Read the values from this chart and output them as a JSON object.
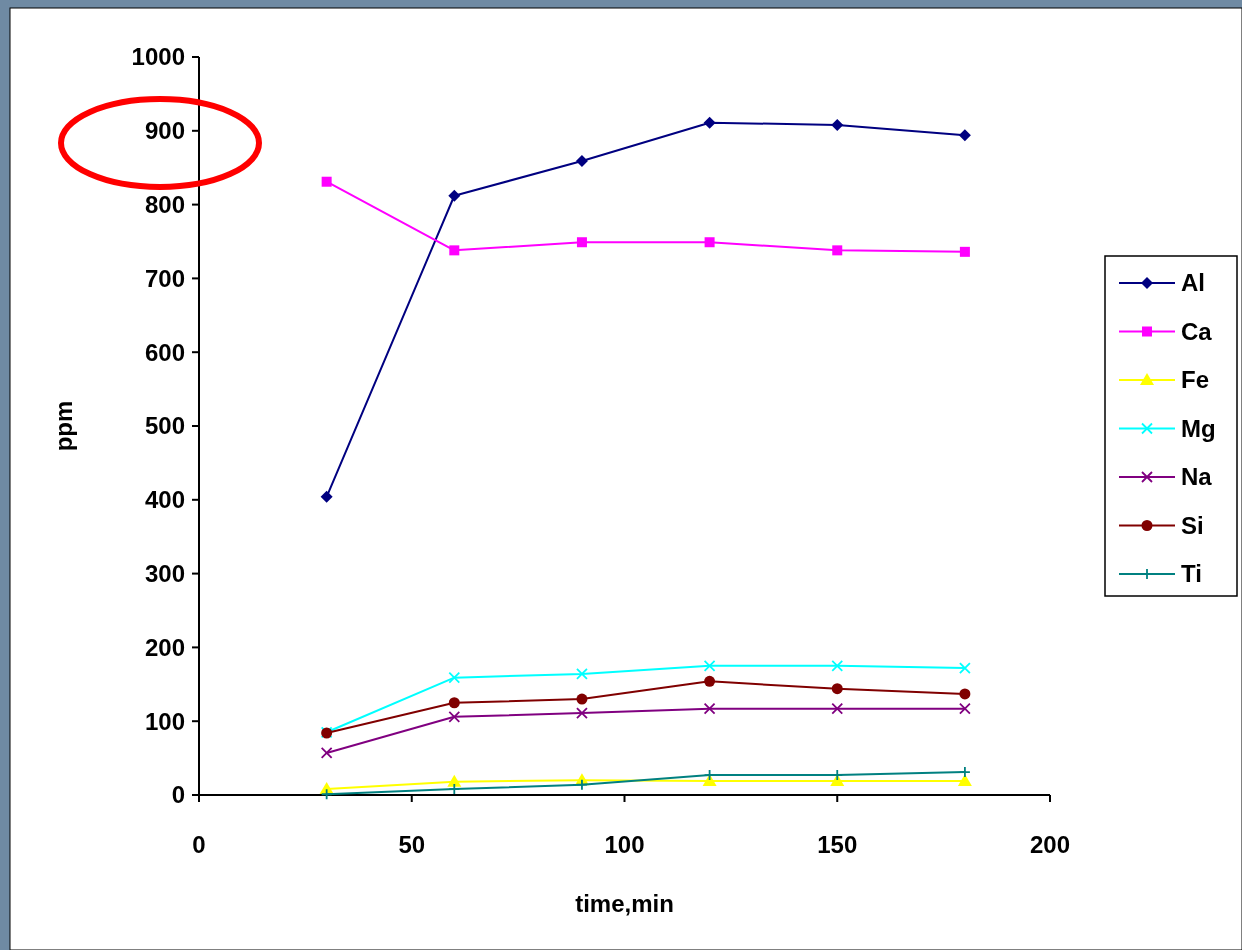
{
  "chart_data": {
    "type": "line",
    "xlabel": "time,min",
    "ylabel": "ppm",
    "x": [
      30,
      60,
      90,
      120,
      150,
      180
    ],
    "xlim": [
      0,
      200
    ],
    "xticks": [
      0,
      50,
      100,
      150,
      200
    ],
    "ylim": [
      0,
      1000
    ],
    "yticks": [
      0,
      100,
      200,
      300,
      400,
      500,
      600,
      700,
      800,
      900,
      1000
    ],
    "grid": false,
    "legend": "right",
    "line_style": "solid",
    "series": [
      {
        "name": "Al",
        "color": "#000080",
        "marker": "diamond",
        "values": [
          404,
          812,
          859,
          911,
          908,
          894
        ]
      },
      {
        "name": "Ca",
        "color": "#ff00ff",
        "marker": "square",
        "values": [
          831,
          738,
          749,
          749,
          738,
          736
        ]
      },
      {
        "name": "Fe",
        "color": "#ffff00",
        "marker": "triangle",
        "values": [
          8,
          18,
          20,
          19,
          19,
          19
        ]
      },
      {
        "name": "Mg",
        "color": "#00ffff",
        "marker": "cross",
        "values": [
          85,
          159,
          164,
          175,
          175,
          172
        ]
      },
      {
        "name": "Na",
        "color": "#800080",
        "marker": "cross",
        "values": [
          57,
          106,
          111,
          117,
          117,
          117
        ]
      },
      {
        "name": "Si",
        "color": "#800000",
        "marker": "circle",
        "values": [
          84,
          125,
          130,
          154,
          144,
          137
        ]
      },
      {
        "name": "Ti",
        "color": "#008080",
        "marker": "plus",
        "values": [
          1,
          8,
          14,
          27,
          27,
          31
        ]
      }
    ]
  }
}
